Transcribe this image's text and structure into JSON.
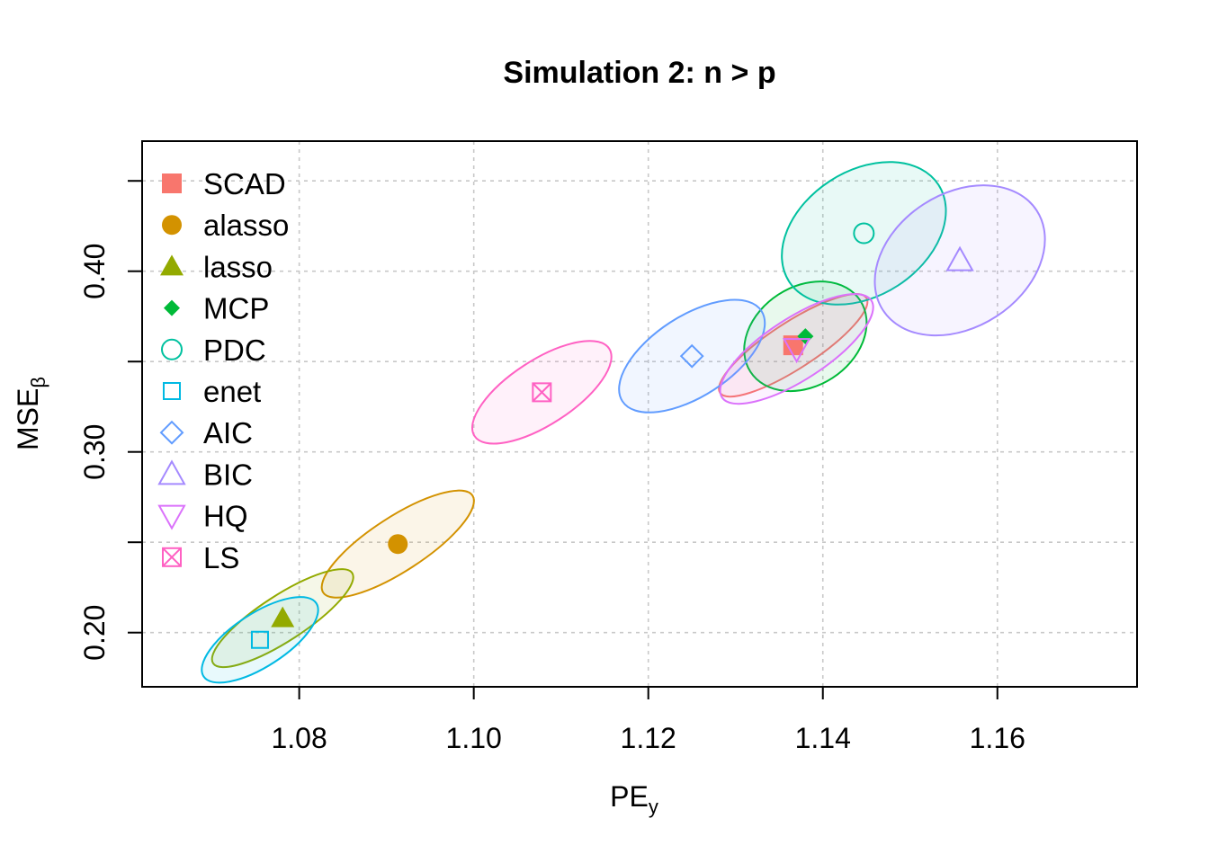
{
  "chart_data": {
    "type": "scatter",
    "title": "Simulation 2: n > p",
    "xlabel": {
      "main": "PE",
      "sub": "y"
    },
    "ylabel": {
      "main": "MSE",
      "sub": "β"
    },
    "xlim": [
      1.062,
      1.176
    ],
    "ylim": [
      0.17,
      0.472
    ],
    "xticks": [
      1.08,
      1.1,
      1.12,
      1.14,
      1.16
    ],
    "xtick_labels": [
      "1.08",
      "1.10",
      "1.12",
      "1.14",
      "1.16"
    ],
    "yticks": [
      0.2,
      0.25,
      0.3,
      0.35,
      0.4,
      0.45
    ],
    "ytick_labels": [
      "0.20",
      "",
      "0.30",
      "",
      "0.40",
      ""
    ],
    "grid": true,
    "legend_position": "top-left",
    "series": [
      {
        "name": "SCAD",
        "symbol": "square-filled",
        "color": "#F8766D",
        "point": {
          "x": 1.1366,
          "y": 0.359
        },
        "ellipse": {
          "cx": 1.1366,
          "cy": 0.359,
          "rx": 0.01,
          "ry": 0.0128,
          "theta": 33
        }
      },
      {
        "name": "alasso",
        "symbol": "circle-filled",
        "color": "#D39200",
        "point": {
          "x": 1.0913,
          "y": 0.249
        },
        "ellipse": {
          "cx": 1.0913,
          "cy": 0.249,
          "rx": 0.0102,
          "ry": 0.015,
          "theta": 33
        }
      },
      {
        "name": "lasso",
        "symbol": "triangle-filled",
        "color": "#93AA00",
        "point": {
          "x": 1.0781,
          "y": 0.208
        },
        "ellipse": {
          "cx": 1.0781,
          "cy": 0.208,
          "rx": 0.0095,
          "ry": 0.0126,
          "theta": 33
        }
      },
      {
        "name": "MCP",
        "symbol": "diamond-filled",
        "color": "#00BA38",
        "point": {
          "x": 1.138,
          "y": 0.364
        },
        "ellipse": {
          "cx": 1.138,
          "cy": 0.364,
          "rx": 0.0075,
          "ry": 0.0275,
          "theta": 33
        }
      },
      {
        "name": "PDC",
        "symbol": "circle-open",
        "color": "#00C19F",
        "point": {
          "x": 1.1447,
          "y": 0.421
        },
        "ellipse": {
          "cx": 1.1447,
          "cy": 0.421,
          "rx": 0.0102,
          "ry": 0.0345,
          "theta": 33
        }
      },
      {
        "name": "enet",
        "symbol": "square-open",
        "color": "#00B9E3",
        "point": {
          "x": 1.0755,
          "y": 0.196
        },
        "ellipse": {
          "cx": 1.0755,
          "cy": 0.196,
          "rx": 0.0077,
          "ry": 0.0147,
          "theta": 33
        }
      },
      {
        "name": "AIC",
        "symbol": "diamond-open",
        "color": "#619CFF",
        "point": {
          "x": 1.125,
          "y": 0.353
        },
        "ellipse": {
          "cx": 1.125,
          "cy": 0.353,
          "rx": 0.0095,
          "ry": 0.0222,
          "theta": 33
        }
      },
      {
        "name": "BIC",
        "symbol": "triangle-open",
        "color": "#A58AFF",
        "point": {
          "x": 1.1557,
          "y": 0.406
        },
        "ellipse": {
          "cx": 1.1557,
          "cy": 0.406,
          "rx": 0.0105,
          "ry": 0.037,
          "theta": 33
        }
      },
      {
        "name": "HQ",
        "symbol": "triangle-down-open",
        "color": "#DB72FB",
        "point": {
          "x": 1.137,
          "y": 0.357
        },
        "ellipse": {
          "cx": 1.137,
          "cy": 0.357,
          "rx": 0.0102,
          "ry": 0.017,
          "theta": 33
        }
      },
      {
        "name": "LS",
        "symbol": "square-x-open",
        "color": "#FF61C3",
        "point": {
          "x": 1.1078,
          "y": 0.333
        },
        "ellipse": {
          "cx": 1.1078,
          "cy": 0.333,
          "rx": 0.0092,
          "ry": 0.0178,
          "theta": 33
        }
      }
    ]
  }
}
